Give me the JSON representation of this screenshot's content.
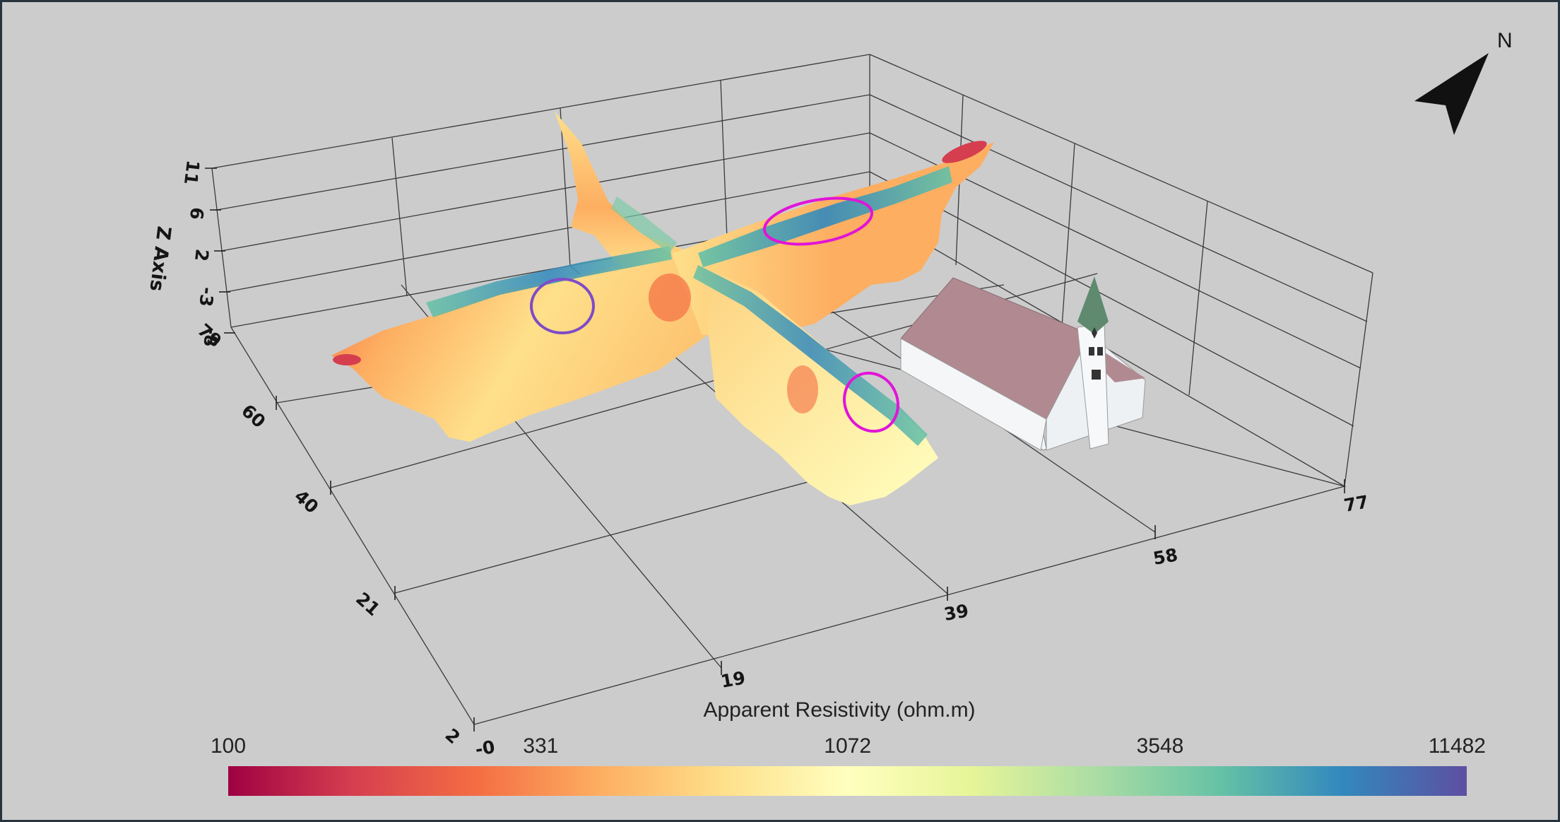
{
  "chart_data": {
    "type": "heatmap",
    "description_type": "3d-surface",
    "z_axis": {
      "title": "Z Axis",
      "ticks": [
        "-8",
        "-3",
        "2",
        "6",
        "11"
      ]
    },
    "y_axis": {
      "ticks": [
        "2",
        "21",
        "40",
        "60",
        "79"
      ]
    },
    "x_axis": {
      "ticks": [
        "-0",
        "19",
        "39",
        "58",
        "77"
      ]
    },
    "colorbar": {
      "title": "Apparent Resistivity (ohm.m)",
      "scale": "log",
      "ticks": [
        "100",
        "331",
        "1072",
        "3548",
        "11482"
      ],
      "range": [
        100,
        11482
      ],
      "colors": [
        "#9e0142",
        "#d53e4f",
        "#f46d43",
        "#fdae61",
        "#fee08b",
        "#ffffbf",
        "#e6f598",
        "#abdda4",
        "#66c2a5",
        "#3288bd",
        "#5e4fa2"
      ]
    },
    "highlights": [
      {
        "shape": "ellipse",
        "color": "#7e4cc7",
        "location": "west arm, shallow conductive-resistive zone"
      },
      {
        "shape": "ellipse",
        "color": "#e114d8",
        "location": "east arm, high resistivity zone"
      },
      {
        "shape": "ellipse",
        "color": "#e114d8",
        "location": "south arm, high resistivity zone"
      }
    ],
    "north_arrow": "N",
    "grid": true
  }
}
